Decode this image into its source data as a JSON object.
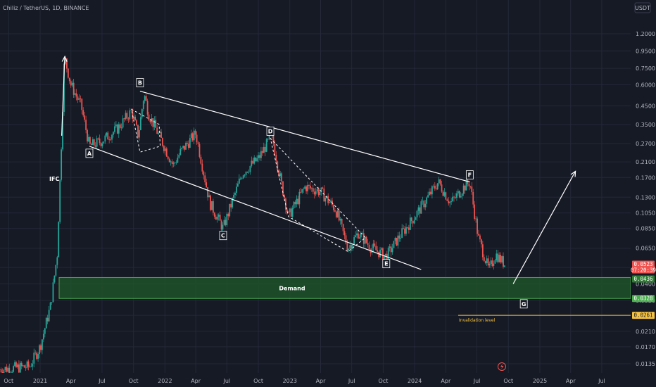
{
  "header": {
    "symbol_line": "Chiliz / TetherUS, 1D, BINANCE",
    "currency_button": "USDT"
  },
  "colors": {
    "background": "#161a25",
    "up": "#26a69a",
    "down": "#ef5350",
    "demand_fill": "#1f5a2a",
    "demand_border": "#4caf50",
    "invalidation": "#f5c242",
    "last_price": "#ef5350"
  },
  "chart_data": {
    "type": "candlestick",
    "scale": "log",
    "price_axis_ticks": [
      "1.2000",
      "0.9500",
      "0.7500",
      "0.6000",
      "0.4500",
      "0.3500",
      "0.2700",
      "0.2100",
      "0.1700",
      "0.1300",
      "0.1050",
      "0.0850",
      "0.0650",
      "0.0500",
      "0.0400",
      "0.0320",
      "0.0261",
      "0.0210",
      "0.0170",
      "0.0135"
    ],
    "time_axis_labels": [
      "Oct",
      "2021",
      "Apr",
      "Jul",
      "Oct",
      "2022",
      "Apr",
      "Jul",
      "Oct",
      "2023",
      "Apr",
      "Jul",
      "Oct",
      "2024",
      "Apr",
      "Jul",
      "Oct",
      "2025",
      "Apr",
      "Jul"
    ],
    "ylim": [
      0.012,
      1.4
    ],
    "approx_close_path": [
      [
        "2020-09-01",
        0.0125
      ],
      [
        "2020-12-01",
        0.013
      ],
      [
        "2021-01-01",
        0.017
      ],
      [
        "2021-02-01",
        0.03
      ],
      [
        "2021-02-20",
        0.06
      ],
      [
        "2021-03-05",
        0.3
      ],
      [
        "2021-03-13",
        0.88
      ],
      [
        "2021-04-01",
        0.6
      ],
      [
        "2021-05-01",
        0.45
      ],
      [
        "2021-05-25",
        0.26
      ],
      [
        "2021-07-01",
        0.28
      ],
      [
        "2021-08-15",
        0.33
      ],
      [
        "2021-09-25",
        0.42
      ],
      [
        "2021-10-15",
        0.3
      ],
      [
        "2021-11-01",
        0.53
      ],
      [
        "2021-11-15",
        0.4
      ],
      [
        "2021-12-15",
        0.3
      ],
      [
        "2022-01-25",
        0.2
      ],
      [
        "2022-02-15",
        0.24
      ],
      [
        "2022-04-01",
        0.31
      ],
      [
        "2022-05-12",
        0.12
      ],
      [
        "2022-06-20",
        0.085
      ],
      [
        "2022-07-15",
        0.12
      ],
      [
        "2022-08-15",
        0.18
      ],
      [
        "2022-10-01",
        0.22
      ],
      [
        "2022-11-10",
        0.3
      ],
      [
        "2022-12-01",
        0.18
      ],
      [
        "2022-12-28",
        0.1
      ],
      [
        "2023-02-15",
        0.15
      ],
      [
        "2023-04-01",
        0.14
      ],
      [
        "2023-05-15",
        0.11
      ],
      [
        "2023-06-20",
        0.065
      ],
      [
        "2023-07-20",
        0.08
      ],
      [
        "2023-08-25",
        0.066
      ],
      [
        "2023-10-10",
        0.058
      ],
      [
        "2023-11-15",
        0.075
      ],
      [
        "2024-01-01",
        0.1
      ],
      [
        "2024-03-10",
        0.16
      ],
      [
        "2024-04-15",
        0.12
      ],
      [
        "2024-05-25",
        0.15
      ],
      [
        "2024-06-10",
        0.16
      ],
      [
        "2024-07-05",
        0.075
      ],
      [
        "2024-08-05",
        0.048
      ],
      [
        "2024-08-25",
        0.06
      ],
      [
        "2024-09-20",
        0.0523
      ]
    ],
    "wave_points": [
      {
        "label": "A",
        "date": "2021-05-25",
        "price": 0.26
      },
      {
        "label": "B",
        "date": "2021-10-20",
        "price": 0.55
      },
      {
        "label": "C",
        "date": "2022-06-20",
        "price": 0.085
      },
      {
        "label": "D",
        "date": "2022-11-05",
        "price": 0.29
      },
      {
        "label": "E",
        "date": "2023-10-10",
        "price": 0.058
      },
      {
        "label": "F",
        "date": "2024-06-10",
        "price": 0.16
      },
      {
        "label": "G",
        "date": "2024-10-15",
        "price": 0.036
      }
    ],
    "annotations": {
      "ifc": "IFC",
      "demand_zone": {
        "label": "Demand",
        "top": 0.0436,
        "bottom": 0.0328
      },
      "invalidation": {
        "label": "Invalidation level",
        "price": 0.0261
      }
    },
    "price_badges": [
      {
        "value": "0.0523",
        "sub": "07:20:39",
        "kind": "last"
      },
      {
        "value": "0.0436",
        "kind": "demand_top"
      },
      {
        "value": "0.0328",
        "kind": "demand_bottom"
      },
      {
        "value": "0.0261",
        "kind": "invalidation"
      }
    ]
  }
}
